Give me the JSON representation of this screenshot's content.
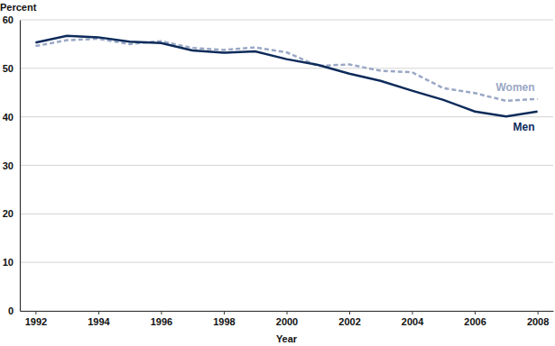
{
  "chart_data": {
    "type": "line",
    "x_label": "Year",
    "y_label": "Percent",
    "x": [
      1992,
      1993,
      1994,
      1995,
      1996,
      1997,
      1998,
      1999,
      2000,
      2001,
      2002,
      2003,
      2004,
      2005,
      2006,
      2007,
      2008
    ],
    "series": [
      {
        "name": "Women",
        "color": "#9aa8c6",
        "line_style": "dashed",
        "values": [
          54.6,
          55.8,
          56.1,
          55.0,
          55.6,
          54.2,
          53.8,
          54.3,
          53.3,
          50.5,
          50.8,
          49.5,
          49.2,
          45.9,
          44.9,
          43.3,
          43.7
        ]
      },
      {
        "name": "Men",
        "color": "#0d2b5a",
        "line_style": "solid",
        "values": [
          55.3,
          56.7,
          56.4,
          55.5,
          55.2,
          53.7,
          53.2,
          53.5,
          51.9,
          50.7,
          48.9,
          47.4,
          45.4,
          43.5,
          41.1,
          40.1,
          41.1
        ]
      }
    ],
    "xlim": [
      1991.5,
      2008.5
    ],
    "xticks": [
      1992,
      1994,
      1996,
      1998,
      2000,
      2002,
      2004,
      2006,
      2008
    ],
    "ylim": [
      0,
      60
    ],
    "yticks": [
      0,
      10,
      20,
      30,
      40,
      50,
      60
    ],
    "grid": true
  }
}
